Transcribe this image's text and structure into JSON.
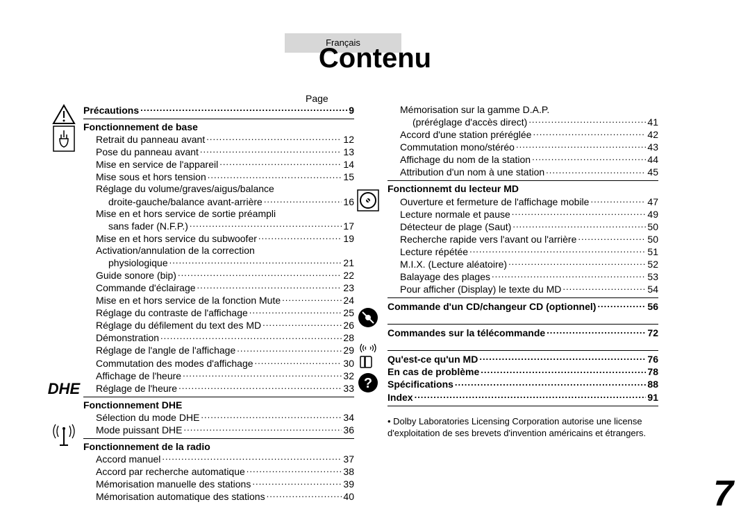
{
  "lang_label": "Français",
  "title": "Contenu",
  "page_word": "Page",
  "page_number": "7",
  "colors": {
    "bg": "#ffffff",
    "text": "#000000",
    "tab_bg": "#d7d7d7"
  },
  "left": {
    "precautions": {
      "label": "Précautions",
      "page": "9"
    },
    "base": {
      "header": "Fonctionnement de base",
      "items": [
        {
          "label": "Retrait du panneau avant",
          "page": "12",
          "indent": 1
        },
        {
          "label": "Pose du panneau avant",
          "page": "13",
          "indent": 1
        },
        {
          "label": "Mise en service de l'appareil",
          "page": "14",
          "indent": 1
        },
        {
          "label": "Mise sous et hors tension",
          "page": "15",
          "indent": 1
        },
        {
          "label": "Réglage du volume/graves/aigus/balance",
          "indent": 1,
          "nocont": true
        },
        {
          "label": "droite-gauche/balance avant-arrière",
          "page": "16",
          "indent": 2
        },
        {
          "label": "Mise en et hors service de sortie préampli",
          "indent": 1,
          "nocont": true
        },
        {
          "label": "sans fader (N.F.P.)",
          "page": "17",
          "indent": 2
        },
        {
          "label": "Mise en et hors service du subwoofer",
          "page": "19",
          "indent": 1
        },
        {
          "label": "Activation/annulation de la correction",
          "indent": 1,
          "nocont": true
        },
        {
          "label": "physiologique",
          "page": "21",
          "indent": 2
        },
        {
          "label": "Guide sonore (bip)",
          "page": "22",
          "indent": 1
        },
        {
          "label": "Commande d'éclairage",
          "page": "23",
          "indent": 1
        },
        {
          "label": "Mise en et hors service de la fonction Mute",
          "page": "24",
          "indent": 1
        },
        {
          "label": "Réglage du contraste de l'affichage",
          "page": "25",
          "indent": 1
        },
        {
          "label": "Réglage du défilement du text des MD",
          "page": "26",
          "indent": 1
        },
        {
          "label": "Démonstration",
          "page": "28",
          "indent": 1
        },
        {
          "label": "Réglage de l'angle de l'affichage",
          "page": "29",
          "indent": 1
        },
        {
          "label": "Commutation des modes d'affichage",
          "page": "30",
          "indent": 1
        },
        {
          "label": "Affichage de l'heure",
          "page": "32",
          "indent": 1
        },
        {
          "label": "Réglage de l'heure",
          "page": "33",
          "indent": 1
        }
      ]
    },
    "dhe": {
      "header": "Fonctionnement DHE",
      "items": [
        {
          "label": "Sélection du mode DHE",
          "page": "34",
          "indent": 1
        },
        {
          "label": "Mode puissant DHE",
          "page": "36",
          "indent": 1
        }
      ]
    },
    "radio": {
      "header": "Fonctionnement de la radio",
      "items": [
        {
          "label": "Accord manuel",
          "page": "37",
          "indent": 1
        },
        {
          "label": "Accord par recherche automatique",
          "page": "38",
          "indent": 1
        },
        {
          "label": "Mémorisation manuelle des stations",
          "page": "39",
          "indent": 1
        },
        {
          "label": "Mémorisation automatique des stations",
          "page": "40",
          "indent": 1
        }
      ]
    }
  },
  "right": {
    "radio_cont": [
      {
        "label": "Mémorisation sur la gamme D.A.P.",
        "indent": 1,
        "nocont": true
      },
      {
        "label": "(préréglage d'accès direct)",
        "page": "41",
        "indent": 2
      },
      {
        "label": "Accord d'une station préréglée",
        "page": "42",
        "indent": 1
      },
      {
        "label": "Commutation mono/stéréo",
        "page": "43",
        "indent": 1
      },
      {
        "label": "Affichage du nom de la station",
        "page": "44",
        "indent": 1
      },
      {
        "label": "Attribution d'un nom à une station",
        "page": "45",
        "indent": 1
      }
    ],
    "md": {
      "header": "Fonctionnemt du lecteur MD",
      "items": [
        {
          "label": "Ouverture et fermeture de l'affichage mobile",
          "page": "47",
          "indent": 1
        },
        {
          "label": "Lecture normale et pause",
          "page": "49",
          "indent": 1
        },
        {
          "label": "Détecteur de plage (Saut)",
          "page": "50",
          "indent": 1
        },
        {
          "label": "Recherche rapide vers l'avant ou l'arrière",
          "page": "50",
          "indent": 1
        },
        {
          "label": "Lecture répétée",
          "page": "51",
          "indent": 1
        },
        {
          "label": "M.I.X. (Lecture aléatoire)",
          "page": "52",
          "indent": 1
        },
        {
          "label": "Balayage des plages",
          "page": "53",
          "indent": 1
        },
        {
          "label": "Pour afficher (Display) le texte du MD",
          "page": "54",
          "indent": 1
        }
      ]
    },
    "cd": {
      "label": "Commande d'un CD/changeur CD (optionnel)",
      "page": "56"
    },
    "remote": {
      "label": "Commandes sur la télécommande",
      "page": "72"
    },
    "misc": [
      {
        "label": "Qu'est-ce qu'un MD",
        "page": "76"
      },
      {
        "label": "En cas de problème",
        "page": "78"
      },
      {
        "label": "Spécifications",
        "page": "88"
      },
      {
        "label": "Index",
        "page": "91"
      }
    ],
    "footnote": "• Dolby Laboratories Licensing Corporation autorise une license d'exploitation de ses brevets d'invention américains et étrangers."
  }
}
